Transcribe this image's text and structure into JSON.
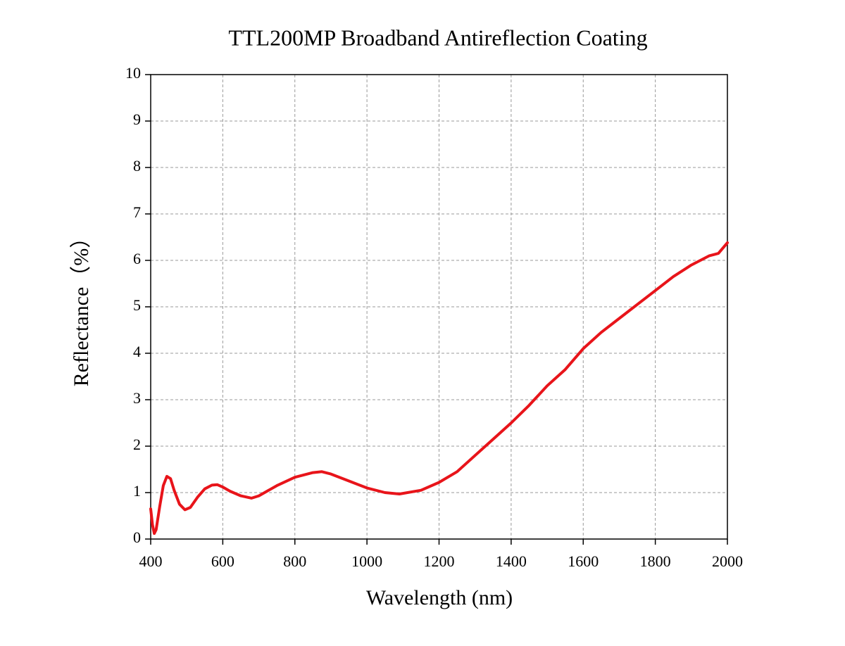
{
  "chart_data": {
    "type": "line",
    "title": "TTL200MP Broadband Antireflection Coating",
    "x_label": "Wavelength (nm)",
    "y_label": "Reflectance（%）",
    "x": [
      400,
      405,
      410,
      415,
      425,
      435,
      445,
      455,
      465,
      480,
      495,
      510,
      530,
      550,
      570,
      585,
      600,
      620,
      650,
      680,
      700,
      750,
      800,
      850,
      875,
      900,
      950,
      1000,
      1050,
      1090,
      1150,
      1200,
      1250,
      1300,
      1350,
      1400,
      1450,
      1500,
      1550,
      1600,
      1650,
      1700,
      1750,
      1800,
      1850,
      1900,
      1950,
      1975,
      2000
    ],
    "series": [
      {
        "name": "Reflectance",
        "color": "#e8141a",
        "values": [
          0.65,
          0.3,
          0.12,
          0.2,
          0.7,
          1.15,
          1.35,
          1.3,
          1.05,
          0.75,
          0.63,
          0.68,
          0.9,
          1.08,
          1.16,
          1.17,
          1.12,
          1.03,
          0.93,
          0.88,
          0.93,
          1.15,
          1.33,
          1.43,
          1.45,
          1.4,
          1.25,
          1.1,
          1.0,
          0.97,
          1.05,
          1.22,
          1.45,
          1.8,
          2.15,
          2.5,
          2.88,
          3.3,
          3.65,
          4.1,
          4.45,
          4.75,
          5.05,
          5.35,
          5.65,
          5.9,
          6.1,
          6.15,
          6.38
        ]
      }
    ],
    "xlim": [
      400,
      2000
    ],
    "xticks": [
      400,
      600,
      800,
      1000,
      1200,
      1400,
      1600,
      1800,
      2000
    ],
    "ylim": [
      0,
      10
    ],
    "yticks": [
      0,
      1,
      2,
      3,
      4,
      5,
      6,
      7,
      8,
      9,
      10
    ],
    "grid": true
  }
}
